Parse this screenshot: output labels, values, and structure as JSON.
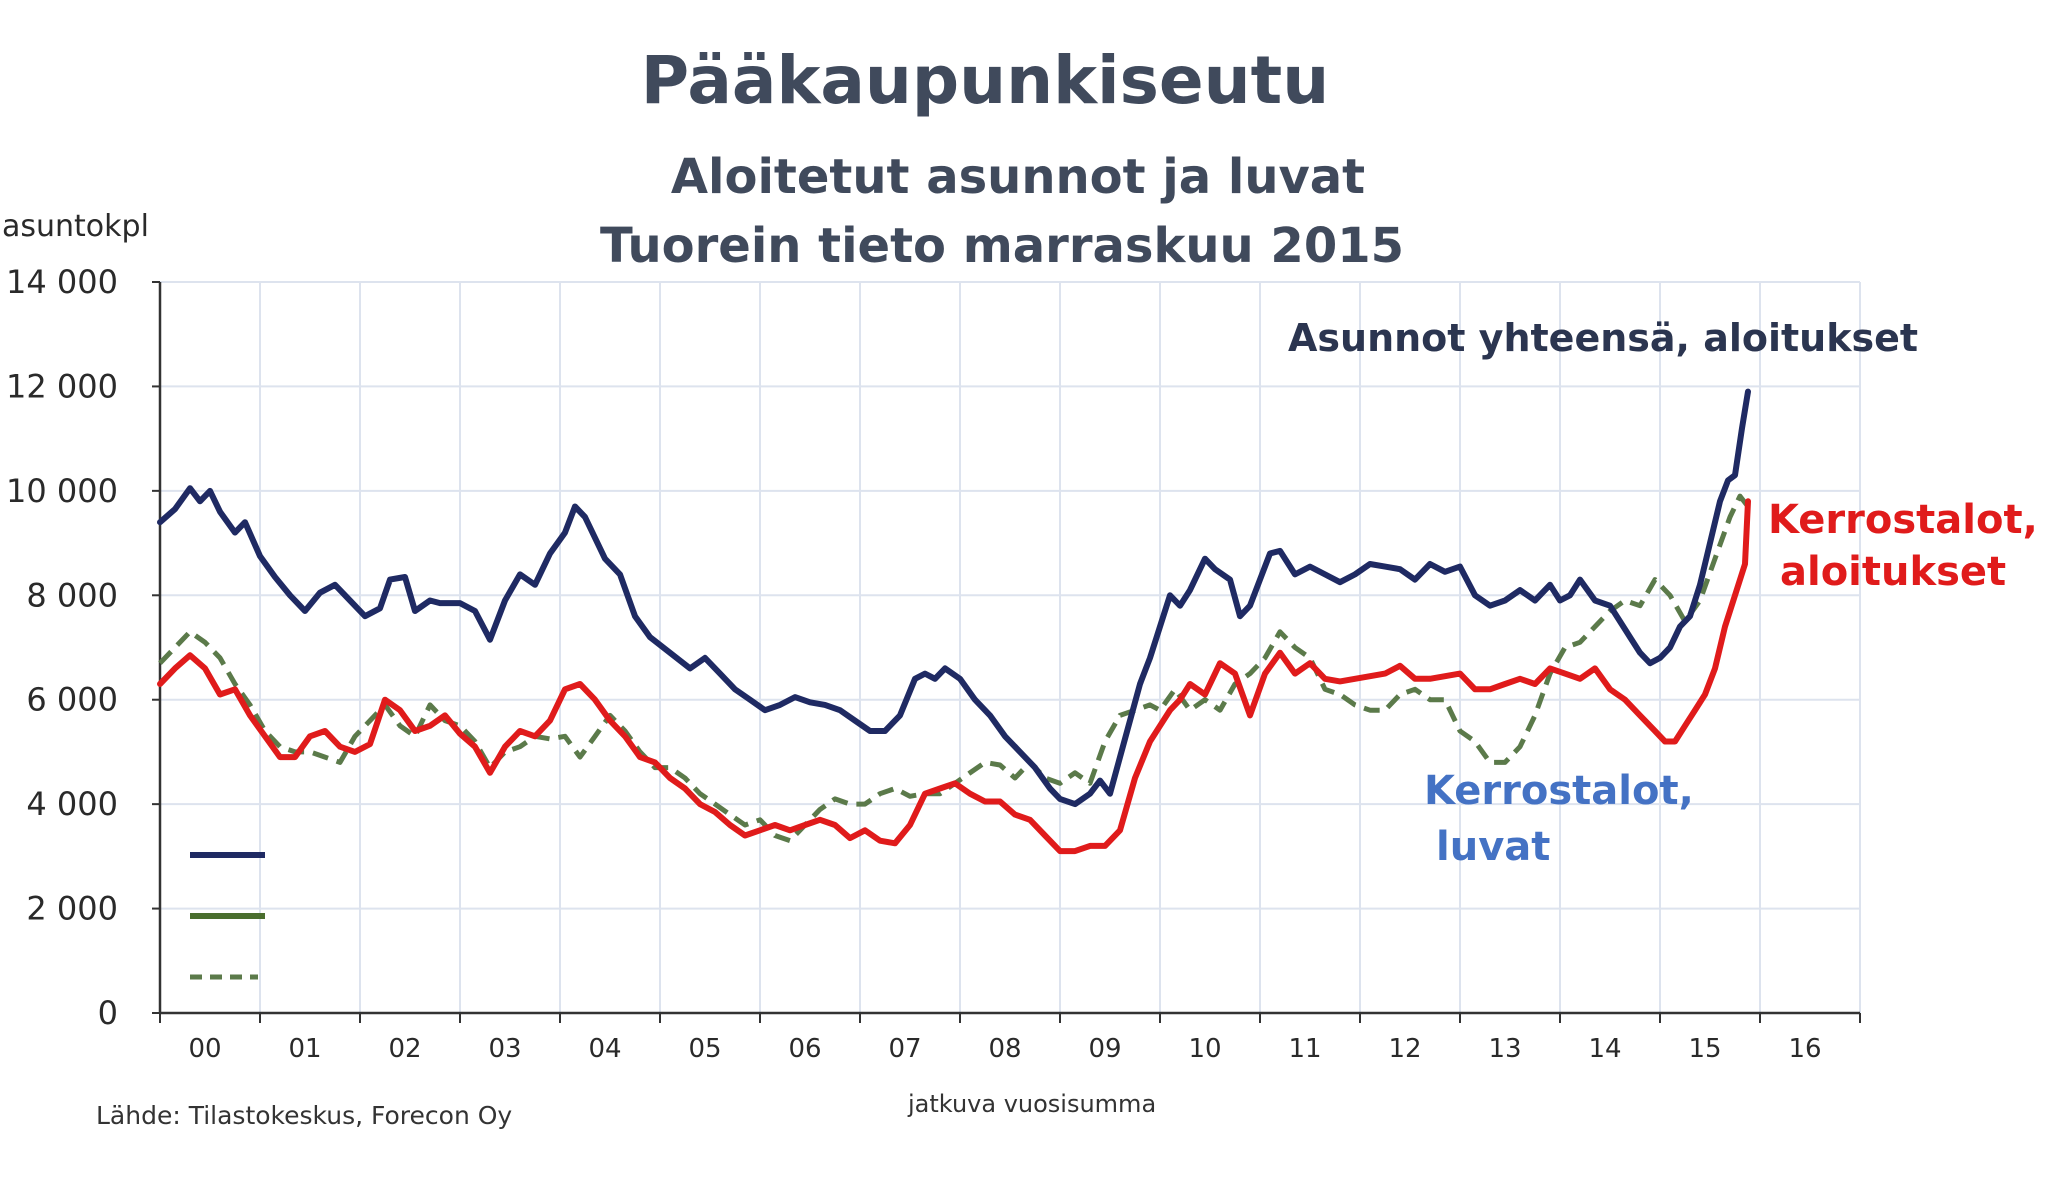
{
  "chart_data": {
    "type": "line",
    "title": "Pääkaupunkiseutu",
    "subtitle_lines": [
      "Aloitetut asunnot ja luvat",
      "Tuorein tieto marraskuu 2015"
    ],
    "ylabel": "asuntokpl",
    "xlabel": "jatkuva vuosisumma",
    "source": "Lähde: Tilastokeskus, Forecon Oy",
    "ylim": [
      0,
      14000
    ],
    "xlim": [
      2000.0,
      2017.0
    ],
    "yticks": [
      0,
      2000,
      4000,
      6000,
      8000,
      10000,
      12000,
      14000
    ],
    "ytick_labels": [
      "0",
      "2 000",
      "4 000",
      "6 000",
      "8 000",
      "10 000",
      "12 000",
      "14 000"
    ],
    "xtick_labels": [
      "00",
      "01",
      "02",
      "03",
      "04",
      "05",
      "06",
      "07",
      "08",
      "09",
      "10",
      "11",
      "12",
      "13",
      "14",
      "15",
      "16"
    ],
    "grid": true,
    "series": [
      {
        "name": "Asunnot yhteensä, aloitukset",
        "color": "#1f2a63",
        "style": "solid",
        "x": [
          2000.0,
          2000.15,
          2000.3,
          2000.4,
          2000.5,
          2000.6,
          2000.75,
          2000.85,
          2001.0,
          2001.15,
          2001.3,
          2001.45,
          2001.6,
          2001.75,
          2001.9,
          2002.05,
          2002.2,
          2002.3,
          2002.45,
          2002.55,
          2002.7,
          2002.8,
          2003.0,
          2003.15,
          2003.3,
          2003.45,
          2003.6,
          2003.75,
          2003.9,
          2004.05,
          2004.15,
          2004.25,
          2004.45,
          2004.6,
          2004.75,
          2004.9,
          2005.1,
          2005.3,
          2005.45,
          2005.6,
          2005.75,
          2005.9,
          2006.05,
          2006.2,
          2006.35,
          2006.5,
          2006.65,
          2006.8,
          2006.95,
          2007.1,
          2007.25,
          2007.4,
          2007.55,
          2007.65,
          2007.75,
          2007.85,
          2008.0,
          2008.15,
          2008.3,
          2008.45,
          2008.6,
          2008.75,
          2008.9,
          2009.0,
          2009.15,
          2009.3,
          2009.4,
          2009.5,
          2009.6,
          2009.7,
          2009.8,
          2009.9,
          2010.0,
          2010.1,
          2010.2,
          2010.3,
          2010.45,
          2010.55,
          2010.7,
          2010.8,
          2010.9,
          2011.0,
          2011.1,
          2011.2,
          2011.35,
          2011.5,
          2011.65,
          2011.8,
          2011.95,
          2012.1,
          2012.25,
          2012.4,
          2012.55,
          2012.7,
          2012.85,
          2013.0,
          2013.15,
          2013.3,
          2013.45,
          2013.6,
          2013.75,
          2013.9,
          2014.0,
          2014.1,
          2014.2,
          2014.35,
          2014.5,
          2014.6,
          2014.7,
          2014.8,
          2014.9,
          2015.0,
          2015.1,
          2015.2,
          2015.3,
          2015.4,
          2015.5,
          2015.6,
          2015.68,
          2015.75,
          2015.82,
          2015.88
        ],
        "y": [
          9400,
          9650,
          10050,
          9800,
          10000,
          9600,
          9200,
          9400,
          8750,
          8350,
          8000,
          7700,
          8050,
          8200,
          7900,
          7600,
          7750,
          8300,
          8350,
          7700,
          7900,
          7850,
          7850,
          7700,
          7150,
          7900,
          8400,
          8200,
          8800,
          9200,
          9700,
          9500,
          8700,
          8400,
          7600,
          7200,
          6900,
          6600,
          6800,
          6500,
          6200,
          6000,
          5800,
          5900,
          6050,
          5950,
          5900,
          5800,
          5600,
          5400,
          5400,
          5700,
          6400,
          6500,
          6400,
          6600,
          6400,
          6000,
          5700,
          5300,
          5000,
          4700,
          4300,
          4100,
          4000,
          4200,
          4450,
          4200,
          4900,
          5600,
          6300,
          6800,
          7400,
          8000,
          7800,
          8100,
          8700,
          8500,
          8300,
          7600,
          7800,
          8300,
          8800,
          8850,
          8400,
          8550,
          8400,
          8250,
          8400,
          8600,
          8550,
          8500,
          8300,
          8600,
          8450,
          8550,
          8000,
          7800,
          7900,
          8100,
          7900,
          8200,
          7900,
          8000,
          8300,
          7900,
          7800,
          7500,
          7200,
          6900,
          6700,
          6800,
          7000,
          7400,
          7600,
          8200,
          9000,
          9800,
          10200,
          10300,
          11200,
          11900
        ]
      },
      {
        "name": "Kerrostalot, aloitukset",
        "color": "#e01b1b",
        "style": "solid",
        "x": [
          2000.0,
          2000.15,
          2000.3,
          2000.45,
          2000.6,
          2000.75,
          2000.9,
          2001.05,
          2001.2,
          2001.35,
          2001.5,
          2001.65,
          2001.8,
          2001.95,
          2002.1,
          2002.25,
          2002.4,
          2002.55,
          2002.7,
          2002.85,
          2003.0,
          2003.15,
          2003.3,
          2003.45,
          2003.6,
          2003.75,
          2003.9,
          2004.05,
          2004.2,
          2004.35,
          2004.5,
          2004.65,
          2004.8,
          2004.95,
          2005.1,
          2005.25,
          2005.4,
          2005.55,
          2005.7,
          2005.85,
          2006.0,
          2006.15,
          2006.3,
          2006.45,
          2006.6,
          2006.75,
          2006.9,
          2007.05,
          2007.2,
          2007.35,
          2007.5,
          2007.65,
          2007.8,
          2007.95,
          2008.1,
          2008.25,
          2008.4,
          2008.55,
          2008.7,
          2008.85,
          2009.0,
          2009.15,
          2009.3,
          2009.45,
          2009.6,
          2009.75,
          2009.9,
          2010.0,
          2010.1,
          2010.2,
          2010.3,
          2010.45,
          2010.6,
          2010.75,
          2010.9,
          2011.05,
          2011.2,
          2011.35,
          2011.5,
          2011.65,
          2011.8,
          2011.95,
          2012.1,
          2012.25,
          2012.4,
          2012.55,
          2012.7,
          2012.85,
          2013.0,
          2013.15,
          2013.3,
          2013.45,
          2013.6,
          2013.75,
          2013.9,
          2014.05,
          2014.2,
          2014.35,
          2014.5,
          2014.65,
          2014.8,
          2014.95,
          2015.05,
          2015.15,
          2015.25,
          2015.35,
          2015.45,
          2015.55,
          2015.65,
          2015.75,
          2015.85,
          2015.88
        ],
        "y": [
          6300,
          6600,
          6850,
          6600,
          6100,
          6200,
          5700,
          5300,
          4900,
          4900,
          5300,
          5400,
          5100,
          5000,
          5150,
          6000,
          5800,
          5400,
          5500,
          5700,
          5350,
          5100,
          4600,
          5100,
          5400,
          5300,
          5600,
          6200,
          6300,
          6000,
          5600,
          5300,
          4900,
          4800,
          4500,
          4300,
          4000,
          3850,
          3600,
          3400,
          3500,
          3600,
          3500,
          3600,
          3700,
          3600,
          3350,
          3500,
          3300,
          3250,
          3600,
          4200,
          4300,
          4400,
          4200,
          4050,
          4050,
          3800,
          3700,
          3400,
          3100,
          3100,
          3200,
          3200,
          3500,
          4500,
          5200,
          5500,
          5800,
          6000,
          6300,
          6100,
          6700,
          6500,
          5700,
          6500,
          6900,
          6500,
          6700,
          6400,
          6350,
          6400,
          6450,
          6500,
          6650,
          6400,
          6400,
          6450,
          6500,
          6200,
          6200,
          6300,
          6400,
          6300,
          6600,
          6500,
          6400,
          6600,
          6200,
          6000,
          5700,
          5400,
          5200,
          5200,
          5500,
          5800,
          6100,
          6600,
          7400,
          8000,
          8600,
          9800
        ]
      },
      {
        "name": "Kerrostalot, luvat",
        "color": "#5b7a4a",
        "style": "dashed",
        "x": [
          2000.0,
          2000.15,
          2000.3,
          2000.45,
          2000.6,
          2000.75,
          2000.9,
          2001.05,
          2001.2,
          2001.35,
          2001.5,
          2001.65,
          2001.8,
          2001.95,
          2002.1,
          2002.25,
          2002.4,
          2002.55,
          2002.7,
          2002.85,
          2003.0,
          2003.15,
          2003.3,
          2003.45,
          2003.6,
          2003.75,
          2003.9,
          2004.05,
          2004.2,
          2004.35,
          2004.5,
          2004.65,
          2004.8,
          2004.95,
          2005.1,
          2005.25,
          2005.4,
          2005.55,
          2005.7,
          2005.85,
          2006.0,
          2006.15,
          2006.3,
          2006.45,
          2006.6,
          2006.75,
          2006.9,
          2007.05,
          2007.2,
          2007.35,
          2007.5,
          2007.65,
          2007.8,
          2007.95,
          2008.1,
          2008.25,
          2008.4,
          2008.55,
          2008.7,
          2008.85,
          2009.0,
          2009.15,
          2009.3,
          2009.45,
          2009.6,
          2009.75,
          2009.9,
          2010.0,
          2010.15,
          2010.3,
          2010.45,
          2010.6,
          2010.75,
          2010.9,
          2011.05,
          2011.2,
          2011.35,
          2011.5,
          2011.65,
          2011.8,
          2011.95,
          2012.1,
          2012.25,
          2012.4,
          2012.55,
          2012.7,
          2012.85,
          2013.0,
          2013.15,
          2013.3,
          2013.45,
          2013.6,
          2013.75,
          2013.9,
          2014.05,
          2014.2,
          2014.35,
          2014.5,
          2014.65,
          2014.8,
          2014.95,
          2015.1,
          2015.25,
          2015.4,
          2015.55,
          2015.7,
          2015.8,
          2015.88
        ],
        "y": [
          6700,
          7000,
          7300,
          7100,
          6800,
          6300,
          5900,
          5400,
          5100,
          5000,
          5000,
          4900,
          4800,
          5300,
          5600,
          5900,
          5500,
          5300,
          5900,
          5600,
          5500,
          5200,
          4700,
          5000,
          5100,
          5300,
          5250,
          5300,
          4900,
          5300,
          5700,
          5400,
          5000,
          4700,
          4700,
          4500,
          4200,
          4000,
          3800,
          3600,
          3700,
          3400,
          3300,
          3600,
          3900,
          4100,
          4000,
          4000,
          4200,
          4300,
          4150,
          4200,
          4200,
          4400,
          4600,
          4800,
          4750,
          4500,
          4800,
          4500,
          4400,
          4600,
          4400,
          5200,
          5700,
          5800,
          5900,
          5800,
          6200,
          5800,
          6000,
          5800,
          6300,
          6500,
          6800,
          7300,
          7000,
          6800,
          6200,
          6100,
          5900,
          5800,
          5800,
          6100,
          6200,
          6000,
          6000,
          5400,
          5200,
          4800,
          4800,
          5100,
          5700,
          6500,
          7000,
          7100,
          7400,
          7700,
          7900,
          7800,
          8300,
          8000,
          7500,
          7900,
          8700,
          9500,
          9900,
          9700
        ]
      }
    ],
    "annotations": [
      {
        "text": "Asunnot yhteensä, aloitukset",
        "color": "#2b3550"
      },
      {
        "text": "Kerrostalot,",
        "color": "#e01b1b"
      },
      {
        "text": "aloitukset",
        "color": "#e01b1b"
      },
      {
        "text": "Kerrostalot,",
        "color": "#4472c4"
      },
      {
        "text": "luvat",
        "color": "#4472c4"
      }
    ],
    "legend": {
      "position": "bottom-left inside",
      "entries": [
        {
          "color": "#1f2a63",
          "style": "solid"
        },
        {
          "color": "#4a6e2e",
          "style": "solid"
        },
        {
          "color": "#5b7a4a",
          "style": "dashed"
        }
      ]
    }
  }
}
